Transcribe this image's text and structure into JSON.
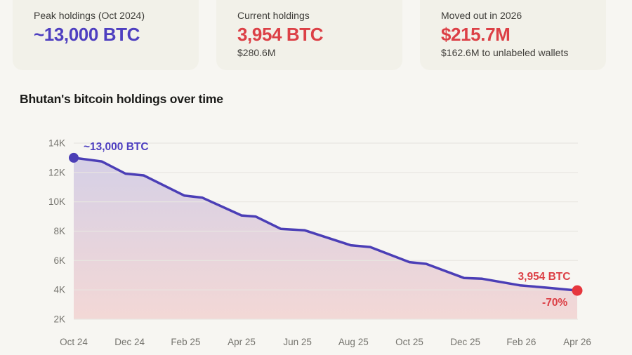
{
  "cards": [
    {
      "label": "Peak holdings (Oct 2024)",
      "value": "~13,000 BTC",
      "sub": "",
      "accent": "purple"
    },
    {
      "label": "Current holdings",
      "value": "3,954 BTC",
      "sub": "$280.6M",
      "accent": "red"
    },
    {
      "label": "Moved out in 2026",
      "value": "$215.7M",
      "sub": "$162.6M to unlabeled wallets",
      "accent": "red"
    }
  ],
  "chart_data": {
    "type": "area",
    "title": "Bhutan's bitcoin holdings over time",
    "grid": "horizontal",
    "legend": "none",
    "ylim": [
      2000,
      14000
    ],
    "x_unit": "months since Oct 2024",
    "xlim": [
      0,
      18
    ],
    "y_ticks": [
      {
        "label": "14K",
        "value": 14000
      },
      {
        "label": "12K",
        "value": 12000
      },
      {
        "label": "10K",
        "value": 10000
      },
      {
        "label": "8K",
        "value": 8000
      },
      {
        "label": "6K",
        "value": 6000
      },
      {
        "label": "4K",
        "value": 4000
      },
      {
        "label": "2K",
        "value": 2000
      }
    ],
    "x_ticks": [
      {
        "label": "Oct 24",
        "m": 0
      },
      {
        "label": "Dec 24",
        "m": 2
      },
      {
        "label": "Feb 25",
        "m": 4
      },
      {
        "label": "Apr 25",
        "m": 6
      },
      {
        "label": "Jun 25",
        "m": 8
      },
      {
        "label": "Aug 25",
        "m": 10
      },
      {
        "label": "Oct 25",
        "m": 12
      },
      {
        "label": "Dec 25",
        "m": 14
      },
      {
        "label": "Feb 26",
        "m": 16
      },
      {
        "label": "Apr 26",
        "m": 18
      }
    ],
    "series": [
      {
        "name": "Bhutan bitcoin holdings (BTC)",
        "points": [
          {
            "m": 0,
            "btc": 13000
          },
          {
            "m": 1,
            "btc": 12750
          },
          {
            "m": 1.85,
            "btc": 11920
          },
          {
            "m": 2.5,
            "btc": 11800
          },
          {
            "m": 3.95,
            "btc": 10430
          },
          {
            "m": 4.6,
            "btc": 10280
          },
          {
            "m": 6.0,
            "btc": 9070
          },
          {
            "m": 6.5,
            "btc": 9000
          },
          {
            "m": 7.4,
            "btc": 8160
          },
          {
            "m": 8.25,
            "btc": 8060
          },
          {
            "m": 9.9,
            "btc": 7040
          },
          {
            "m": 10.6,
            "btc": 6920
          },
          {
            "m": 12.0,
            "btc": 5890
          },
          {
            "m": 12.6,
            "btc": 5770
          },
          {
            "m": 13.95,
            "btc": 4810
          },
          {
            "m": 14.6,
            "btc": 4760
          },
          {
            "m": 15.95,
            "btc": 4310
          },
          {
            "m": 16.9,
            "btc": 4150
          },
          {
            "m": 18,
            "btc": 3954
          }
        ]
      }
    ],
    "markers": [
      {
        "name": "peak-marker-dot",
        "m": 0,
        "btc": 13000,
        "color": "purple_dot",
        "r": 7
      },
      {
        "name": "current-marker-dot",
        "m": 18,
        "btc": 3954,
        "color": "red_dot",
        "r": 7.5
      }
    ],
    "annotations": [
      {
        "name": "annotation-peak",
        "text": "~13,000 BTC",
        "m": 0.35,
        "btc": 13750,
        "anchor": "start",
        "color": "purple"
      },
      {
        "name": "annotation-current",
        "text": "3,954 BTC",
        "m": 16.82,
        "btc": 4920,
        "anchor": "middle",
        "color": "red"
      },
      {
        "name": "annotation-change",
        "text": "-70%",
        "m": 17.2,
        "btc": 3150,
        "anchor": "middle",
        "color": "red"
      }
    ]
  },
  "palette": {
    "page_bg": "#f7f6f2",
    "card_bg": "#f2f1e9",
    "purple": "#4e3fc0",
    "purple_dot": "#4b3eb6",
    "line": "#4b3eb6",
    "red": "#dc4046",
    "red_dot": "#e6363d",
    "grid": "#e8e6e1",
    "axis_text": "#75746e",
    "title_text": "#1b1b19",
    "label_text": "#3d3c38",
    "fill_top": "rgba(110,94,196,0.25)",
    "fill_bottom": "rgba(228,108,114,0.22)"
  }
}
